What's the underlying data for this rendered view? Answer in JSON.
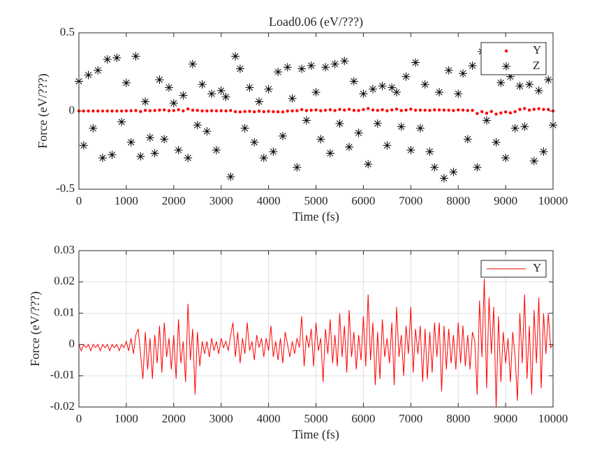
{
  "chart_data": [
    {
      "type": "scatter",
      "title": "Load0.06 (eV/???)",
      "x_label": "Time (fs)",
      "y_label": "Force (eV/???)",
      "xlim": [
        0,
        10000
      ],
      "xticks": [
        0,
        1000,
        2000,
        3000,
        4000,
        5000,
        6000,
        7000,
        8000,
        9000,
        10000
      ],
      "ylim": [
        -0.5,
        0.5
      ],
      "yticks": [
        -0.5,
        0,
        0.5
      ],
      "grid": false,
      "legend": "upper right",
      "x": [
        0,
        100,
        200,
        300,
        400,
        500,
        600,
        700,
        800,
        900,
        1000,
        1100,
        1200,
        1300,
        1400,
        1500,
        1600,
        1700,
        1800,
        1900,
        2000,
        2100,
        2200,
        2300,
        2400,
        2500,
        2600,
        2700,
        2800,
        2900,
        3000,
        3100,
        3200,
        3300,
        3400,
        3500,
        3600,
        3700,
        3800,
        3900,
        4000,
        4100,
        4200,
        4300,
        4400,
        4500,
        4600,
        4700,
        4800,
        4900,
        5000,
        5100,
        5200,
        5300,
        5400,
        5500,
        5600,
        5700,
        5800,
        5900,
        6000,
        6100,
        6200,
        6300,
        6400,
        6500,
        6600,
        6700,
        6800,
        6900,
        7000,
        7100,
        7200,
        7300,
        7400,
        7500,
        7600,
        7700,
        7800,
        7900,
        8000,
        8100,
        8200,
        8300,
        8400,
        8500,
        8600,
        8700,
        8800,
        8900,
        9000,
        9100,
        9200,
        9300,
        9400,
        9500,
        9600,
        9700,
        9800,
        9900,
        10000
      ],
      "series": [
        {
          "name": "Y",
          "color": "#ff0000",
          "marker": "dot",
          "values": [
            0,
            0,
            0,
            0,
            0,
            0,
            0,
            0,
            0,
            0,
            0.001,
            0.002,
            0.003,
            -0.003,
            0.004,
            0.002,
            0.003,
            0.006,
            0.007,
            0.002,
            0.003,
            0.008,
            0.001,
            0.013,
            0.005,
            0.004,
            0.001,
            0.001,
            0.002,
            0.001,
            0.002,
            0.001,
            0.003,
            -0.004,
            -0.006,
            -0.003,
            -0.002,
            -0.005,
            -0.001,
            -0.004,
            -0.002,
            -0.004,
            -0.005,
            -0.006,
            0.0,
            0.001,
            0.002,
            0.009,
            0.003,
            0.005,
            0.007,
            0.002,
            0.005,
            0.008,
            0.003,
            0.01,
            0.006,
            0.011,
            0.004,
            0.003,
            0.009,
            0.016,
            0.007,
            0.004,
            0.008,
            0.002,
            0.007,
            0.012,
            0.003,
            0.006,
            0.012,
            0.005,
            0.006,
            0.005,
            0.004,
            0.007,
            0.007,
            0.006,
            0.005,
            0.003,
            0.007,
            0.006,
            0.003,
            0.004,
            -0.016,
            -0.004,
            -0.014,
            -0.003,
            -0.02,
            -0.012,
            -0.006,
            -0.012,
            -0.004,
            0.01,
            0.016,
            0.006,
            0.011,
            0.015,
            0.01,
            0.01,
            0.0
          ]
        },
        {
          "name": "Z",
          "color": "#000000",
          "marker": "asterisk",
          "values": [
            0.19,
            -0.22,
            0.23,
            -0.11,
            0.26,
            -0.3,
            0.33,
            -0.28,
            0.34,
            -0.07,
            0.18,
            -0.2,
            0.35,
            -0.29,
            0.06,
            -0.17,
            -0.27,
            0.2,
            -0.18,
            0.15,
            0.05,
            -0.25,
            0.1,
            -0.3,
            0.3,
            -0.09,
            0.17,
            -0.13,
            0.11,
            -0.25,
            0.13,
            0.09,
            -0.42,
            0.35,
            0.27,
            -0.11,
            0.15,
            -0.2,
            0.06,
            -0.3,
            0.14,
            -0.26,
            0.25,
            -0.16,
            0.28,
            0.08,
            -0.36,
            0.27,
            -0.06,
            0.29,
            0.12,
            -0.18,
            0.28,
            -0.27,
            0.3,
            -0.08,
            0.32,
            -0.23,
            0.19,
            -0.14,
            0.11,
            -0.34,
            0.14,
            -0.08,
            0.16,
            -0.22,
            0.15,
            0.12,
            -0.1,
            0.22,
            -0.25,
            0.31,
            -0.11,
            0.17,
            -0.26,
            -0.36,
            0.12,
            -0.43,
            0.26,
            -0.39,
            0.11,
            0.24,
            -0.18,
            0.29,
            -0.36,
            0.38,
            -0.06,
            0.26,
            -0.2,
            0.18,
            -0.3,
            0.22,
            -0.11,
            0.16,
            -0.1,
            0.17,
            -0.32,
            0.13,
            -0.26,
            0.2,
            -0.09
          ]
        }
      ]
    },
    {
      "type": "line",
      "x_label": "Time (fs)",
      "y_label": "Force (eV/???)",
      "xlim": [
        0,
        10000
      ],
      "xticks": [
        0,
        1000,
        2000,
        3000,
        4000,
        5000,
        6000,
        7000,
        8000,
        9000,
        10000
      ],
      "ylim": [
        -0.02,
        0.03
      ],
      "yticks": [
        -0.02,
        -0.01,
        0,
        0.01,
        0.02,
        0.03
      ],
      "grid": true,
      "legend": "upper right",
      "x": [
        0,
        50,
        100,
        150,
        200,
        250,
        300,
        350,
        400,
        450,
        500,
        550,
        600,
        650,
        700,
        750,
        800,
        850,
        900,
        950,
        1000,
        1050,
        1100,
        1150,
        1200,
        1250,
        1300,
        1350,
        1400,
        1450,
        1500,
        1550,
        1600,
        1650,
        1700,
        1750,
        1800,
        1850,
        1900,
        1950,
        2000,
        2050,
        2100,
        2150,
        2200,
        2250,
        2300,
        2350,
        2400,
        2450,
        2500,
        2550,
        2600,
        2650,
        2700,
        2750,
        2800,
        2850,
        2900,
        2950,
        3000,
        3050,
        3100,
        3150,
        3200,
        3250,
        3300,
        3350,
        3400,
        3450,
        3500,
        3550,
        3600,
        3650,
        3700,
        3750,
        3800,
        3850,
        3900,
        3950,
        4000,
        4050,
        4100,
        4150,
        4200,
        4250,
        4300,
        4350,
        4400,
        4450,
        4500,
        4550,
        4600,
        4650,
        4700,
        4750,
        4800,
        4850,
        4900,
        4950,
        5000,
        5050,
        5100,
        5150,
        5200,
        5250,
        5300,
        5350,
        5400,
        5450,
        5500,
        5550,
        5600,
        5650,
        5700,
        5750,
        5800,
        5850,
        5900,
        5950,
        6000,
        6050,
        6100,
        6150,
        6200,
        6250,
        6300,
        6350,
        6400,
        6450,
        6500,
        6550,
        6600,
        6650,
        6700,
        6750,
        6800,
        6850,
        6900,
        6950,
        7000,
        7050,
        7100,
        7150,
        7200,
        7250,
        7300,
        7350,
        7400,
        7450,
        7500,
        7550,
        7600,
        7650,
        7700,
        7750,
        7800,
        7850,
        7900,
        7950,
        8000,
        8050,
        8100,
        8150,
        8200,
        8250,
        8300,
        8350,
        8400,
        8450,
        8500,
        8550,
        8600,
        8650,
        8700,
        8750,
        8800,
        8850,
        8900,
        8950,
        9000,
        9050,
        9100,
        9150,
        9200,
        9250,
        9300,
        9350,
        9400,
        9450,
        9500,
        9550,
        9600,
        9650,
        9700,
        9750,
        9800,
        9850,
        9900,
        9950,
        10000
      ],
      "series": [
        {
          "name": "Y",
          "color": "#ff0000",
          "values": [
            0,
            -0.002,
            0,
            -0.001,
            0,
            -0.002,
            0,
            -0.001,
            0,
            -0.002,
            0,
            -0.001,
            0,
            -0.002,
            0,
            -0.001,
            0,
            -0.002,
            0,
            -0.001,
            0.001,
            -0.002,
            0.002,
            -0.003,
            0.003,
            0.005,
            -0.003,
            -0.011,
            0.004,
            -0.008,
            0.002,
            -0.011,
            0.003,
            -0.006,
            0.006,
            -0.009,
            0.007,
            -0.004,
            0.002,
            -0.008,
            0.003,
            -0.011,
            0.008,
            -0.006,
            0.001,
            -0.012,
            0.013,
            -0.005,
            0.005,
            -0.016,
            0.004,
            -0.007,
            0.001,
            -0.003,
            0.001,
            -0.004,
            0.002,
            -0.002,
            0.001,
            -0.003,
            0.002,
            -0.001,
            0.001,
            -0.002,
            0.003,
            0.007,
            -0.004,
            0.004,
            -0.006,
            0.002,
            -0.003,
            0.007,
            -0.002,
            0.001,
            -0.005,
            0.003,
            -0.001,
            0.002,
            -0.004,
            0.002,
            -0.002,
            0.006,
            -0.004,
            0.001,
            -0.005,
            0.002,
            -0.006,
            0.004,
            0.0,
            -0.004,
            0.001,
            -0.003,
            0.002,
            -0.001,
            0.009,
            -0.007,
            0.003,
            -0.001,
            0.005,
            -0.007,
            0.007,
            -0.002,
            0.002,
            -0.012,
            0.005,
            -0.003,
            0.008,
            -0.006,
            0.003,
            -0.007,
            0.01,
            -0.004,
            0.006,
            -0.009,
            0.011,
            -0.004,
            0.004,
            -0.008,
            0.003,
            -0.005,
            0.009,
            -0.007,
            0.016,
            -0.005,
            0.007,
            -0.013,
            0.004,
            -0.011,
            0.008,
            -0.004,
            0.002,
            -0.006,
            0.007,
            -0.013,
            0.012,
            -0.004,
            0.003,
            -0.01,
            0.006,
            -0.003,
            0.012,
            -0.009,
            0.005,
            -0.003,
            0.006,
            -0.012,
            0.005,
            -0.011,
            0.004,
            -0.009,
            0.007,
            -0.004,
            0.007,
            -0.015,
            0.006,
            -0.008,
            0.005,
            -0.006,
            0.003,
            -0.008,
            0.007,
            -0.006,
            0.006,
            -0.007,
            0.003,
            -0.008,
            0.004,
            0.001,
            -0.016,
            0.014,
            -0.004,
            0.021,
            -0.014,
            0.015,
            -0.003,
            0.012,
            -0.02,
            0.009,
            -0.012,
            0.004,
            -0.006,
            0.002,
            -0.012,
            0.004,
            -0.004,
            -0.018,
            0.01,
            -0.006,
            0.016,
            -0.011,
            0.006,
            -0.016,
            0.011,
            -0.006,
            0.015,
            -0.014,
            0.01,
            -0.003,
            0.01,
            -0.001,
            0.0
          ]
        }
      ]
    }
  ]
}
